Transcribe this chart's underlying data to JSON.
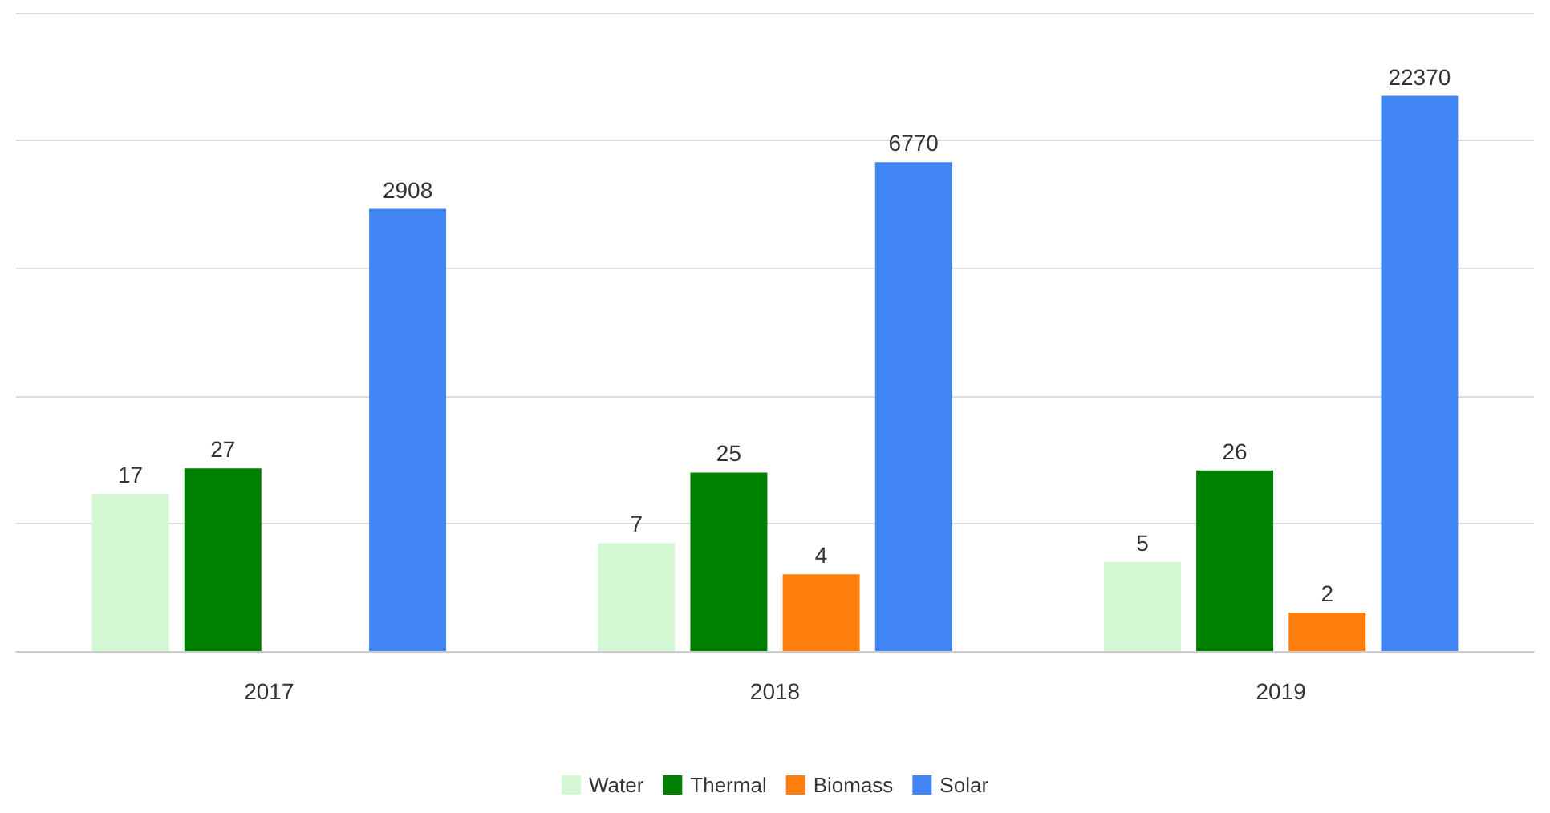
{
  "chart_data": {
    "type": "bar",
    "categories": [
      "2017",
      "2018",
      "2019"
    ],
    "series": [
      {
        "name": "Water",
        "color": "#d4f7d4",
        "values": [
          17,
          7,
          5
        ]
      },
      {
        "name": "Thermal",
        "color": "#008000",
        "values": [
          27,
          25,
          26
        ]
      },
      {
        "name": "Biomass",
        "color": "#ff7f0e",
        "values": [
          null,
          4,
          2
        ]
      },
      {
        "name": "Solar",
        "color": "#4285f4",
        "values": [
          2908,
          6770,
          22370
        ]
      }
    ],
    "log": true,
    "ylim": [
      1,
      100000
    ],
    "yticks": [
      {
        "value": 1,
        "label": null
      },
      {
        "value": 10,
        "label": null
      },
      {
        "value": 100,
        "label": null
      },
      {
        "value": 1000,
        "label": null
      },
      {
        "value": 10000,
        "label": null
      },
      {
        "value": 100000,
        "label": null
      }
    ],
    "tick_labels": "x",
    "grid": "y",
    "legend": "bottom",
    "data_labels": true
  }
}
